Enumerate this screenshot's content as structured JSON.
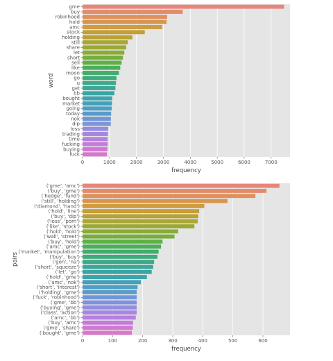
{
  "chart_data": [
    {
      "type": "bar",
      "orientation": "horizontal",
      "xlabel": "frequency",
      "ylabel": "word",
      "xlim": [
        0,
        7700
      ],
      "xticks": [
        0,
        1000,
        2000,
        3000,
        4000,
        5000,
        6000,
        7000
      ],
      "grid": true,
      "categories": [
        "gme",
        "buy",
        "robinhood",
        "hold",
        "amc",
        "stock",
        "holding",
        "still",
        "share",
        "let",
        "short",
        "sell",
        "like",
        "moon",
        "go",
        "u",
        "get",
        "bb",
        "bought",
        "market",
        "going",
        "today",
        "nok",
        "dip",
        "loss",
        "trading",
        "time",
        "fucking",
        "buying",
        "fuck"
      ],
      "values": [
        7480,
        3720,
        3140,
        3120,
        2960,
        2310,
        1850,
        1680,
        1620,
        1550,
        1500,
        1450,
        1400,
        1350,
        1260,
        1240,
        1220,
        1180,
        1100,
        1090,
        1080,
        1060,
        1050,
        1050,
        950,
        940,
        930,
        930,
        920,
        900
      ],
      "colors": [
        "#e8857a",
        "#e48b6b",
        "#df905c",
        "#d8954d",
        "#d09a3d",
        "#c59e36",
        "#b8a233",
        "#aaa633",
        "#9ba933",
        "#8aac36",
        "#76ae3b",
        "#5fb044",
        "#4aaf5a",
        "#42ad6d",
        "#3eab7d",
        "#3ca98b",
        "#3aa797",
        "#3aa5a3",
        "#3ca3ae",
        "#42a1b9",
        "#4c9ec3",
        "#5b9bcc",
        "#6e97d5",
        "#8192dc",
        "#948ce0",
        "#a686e1",
        "#b680df",
        "#c47bdb",
        "#d177d4",
        "#dc76c9"
      ]
    },
    {
      "type": "bar",
      "orientation": "horizontal",
      "xlabel": "frequency",
      "ylabel": "pairs",
      "xlim": [
        0,
        690
      ],
      "xticks": [
        0,
        100,
        200,
        300,
        400,
        500,
        600
      ],
      "grid": true,
      "categories": [
        "('gme', 'amc')",
        "('buy', 'gme')",
        "('hedge', 'fund')",
        "('still', 'holding')",
        "('diamond', 'hand')",
        "('hold', 'line')",
        "('buy', 'dip')",
        "('loss', 'porn')",
        "('like', 'stock')",
        "('hold', 'hold')",
        "('wall', 'street')",
        "('buy', 'hold')",
        "('amc', 'gme')",
        "('market', 'manipulation')",
        "('buy', 'buy')",
        "('gon', 'na')",
        "('short', 'squeeze')",
        "('let', 'go')",
        "('hold', 'gme')",
        "('amc', 'nok')",
        "('short', 'interest')",
        "('holding', 'gme')",
        "('fuck', 'robinhood')",
        "('gme', 'bb')",
        "('buying', 'gme')",
        "('class', 'action')",
        "('amc', 'bb')",
        "('buy', 'amc')",
        "('gme', 'share')",
        "('bought', 'gme')"
      ],
      "values": [
        655,
        612,
        575,
        482,
        405,
        388,
        385,
        383,
        372,
        318,
        306,
        266,
        261,
        253,
        249,
        238,
        235,
        230,
        214,
        194,
        183,
        180,
        180,
        180,
        180,
        180,
        177,
        168,
        167,
        164
      ],
      "colors": [
        "#e8857a",
        "#e48b6b",
        "#df905c",
        "#d8954d",
        "#d09a3d",
        "#c59e36",
        "#b8a233",
        "#aaa633",
        "#9ba933",
        "#8aac36",
        "#76ae3b",
        "#5fb044",
        "#4aaf5a",
        "#42ad6d",
        "#3eab7d",
        "#3ca98b",
        "#3aa797",
        "#3aa5a3",
        "#3ca3ae",
        "#42a1b9",
        "#4c9ec3",
        "#5b9bcc",
        "#6e97d5",
        "#8192dc",
        "#948ce0",
        "#a686e1",
        "#b680df",
        "#c47bdb",
        "#d177d4",
        "#dc76c9"
      ]
    }
  ]
}
